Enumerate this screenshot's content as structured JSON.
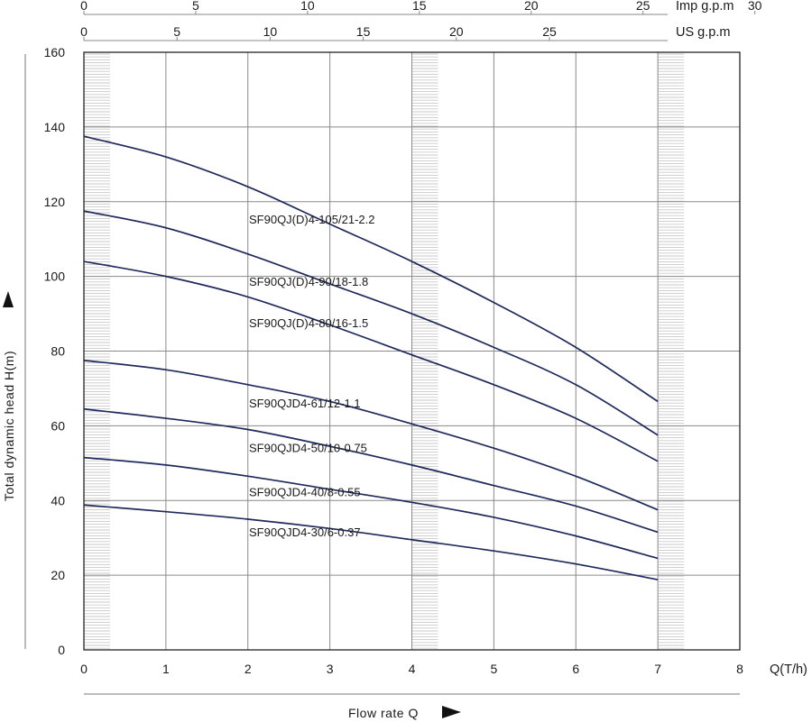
{
  "chart_data": {
    "type": "line",
    "xlabel": "Q(T/h)",
    "ylabel": "Total dynamic head H(m)",
    "bottom_title": "Flow rate Q",
    "x_ticks": [
      0,
      1,
      2,
      3,
      4,
      5,
      6,
      7,
      8
    ],
    "y_ticks": [
      0,
      20,
      40,
      60,
      80,
      100,
      120,
      140,
      160
    ],
    "xlim": [
      0,
      8
    ],
    "ylim": [
      0,
      160
    ],
    "grid": true,
    "secondary_axes": [
      {
        "unit_label": "Imp g.p.m",
        "ticks": [
          0,
          5,
          10,
          15,
          20,
          25,
          30
        ]
      },
      {
        "unit_label": "US g.p.m",
        "ticks": [
          0,
          5,
          10,
          15,
          20,
          25
        ]
      }
    ],
    "series": [
      {
        "name": "SF90QJ(D)4-105/21-2.2",
        "x": [
          0,
          1,
          2,
          3,
          4,
          5,
          6,
          7
        ],
        "y": [
          137.5,
          132,
          124,
          114,
          104,
          93,
          81,
          66.5
        ]
      },
      {
        "name": "SF90QJ(D)4-90/18-1.8",
        "x": [
          0,
          1,
          2,
          3,
          4,
          5,
          6,
          7
        ],
        "y": [
          117.5,
          113,
          106,
          98,
          90,
          81,
          71,
          57.5
        ]
      },
      {
        "name": "SF90QJ(D)4-80/16-1.5",
        "x": [
          0,
          1,
          2,
          3,
          4,
          5,
          6,
          7
        ],
        "y": [
          104,
          100,
          94.5,
          87,
          79,
          71,
          62,
          50.5
        ]
      },
      {
        "name": "SF90QJD4-61/12-1.1",
        "x": [
          0,
          1,
          2,
          3,
          4,
          5,
          6,
          7
        ],
        "y": [
          77.5,
          75,
          71,
          66.5,
          60.5,
          54,
          46.5,
          37.5
        ]
      },
      {
        "name": "SF90QJD4-50/10-0.75",
        "x": [
          0,
          1,
          2,
          3,
          4,
          5,
          6,
          7
        ],
        "y": [
          64.5,
          62,
          59,
          54.5,
          49.5,
          44,
          38.5,
          31.5
        ]
      },
      {
        "name": "SF90QJD4-40/8-0.55",
        "x": [
          0,
          1,
          2,
          3,
          4,
          5,
          6,
          7
        ],
        "y": [
          51.5,
          49.5,
          46.5,
          43,
          39.5,
          35.5,
          30.5,
          24.5
        ]
      },
      {
        "name": "SF90QJD4-30/6-0.37",
        "x": [
          0,
          1,
          2,
          3,
          4,
          5,
          6,
          7
        ],
        "y": [
          38.8,
          37,
          35,
          32.5,
          29.5,
          26.5,
          23,
          18.8
        ]
      }
    ],
    "curve_color": "#1f2a5c",
    "grid_color": "#8a8a8a",
    "band_color": "#c9c9c9"
  }
}
